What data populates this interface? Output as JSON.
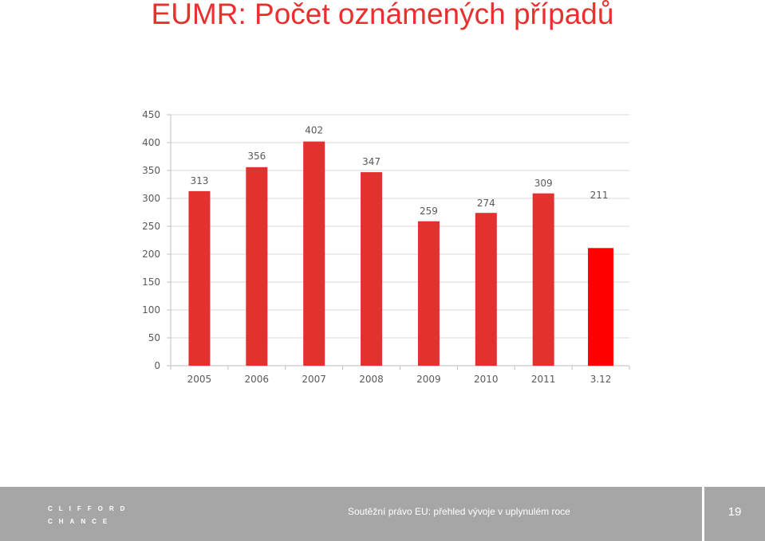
{
  "slide": {
    "title": "EUMR: Počet oznámených případů"
  },
  "chart_data": {
    "type": "bar",
    "title": "",
    "xlabel": "",
    "ylabel": "",
    "categories": [
      "2005",
      "2006",
      "2007",
      "2008",
      "2009",
      "2010",
      "2011",
      "3.12"
    ],
    "values": [
      313,
      356,
      402,
      347,
      259,
      274,
      309,
      211
    ],
    "data_labels": [
      "313",
      "356",
      "402",
      "347",
      "259",
      "274",
      "309",
      "211"
    ],
    "ylim": [
      0,
      450
    ],
    "y_ticks": [
      0,
      50,
      100,
      150,
      200,
      250,
      300,
      350,
      400,
      450
    ],
    "grid": true,
    "legend": "none",
    "colors": {
      "bar": "#e2312f",
      "bar_highlight": "#ff0000",
      "grid": "#d9d9d9",
      "axis_text": "#595959"
    }
  },
  "footer": {
    "logo_line1": "CLIFFORD",
    "logo_line2": "CHANCE",
    "text": "Soutěžní právo EU:  přehled vývoje v uplynulém roce",
    "page_number": "19"
  }
}
